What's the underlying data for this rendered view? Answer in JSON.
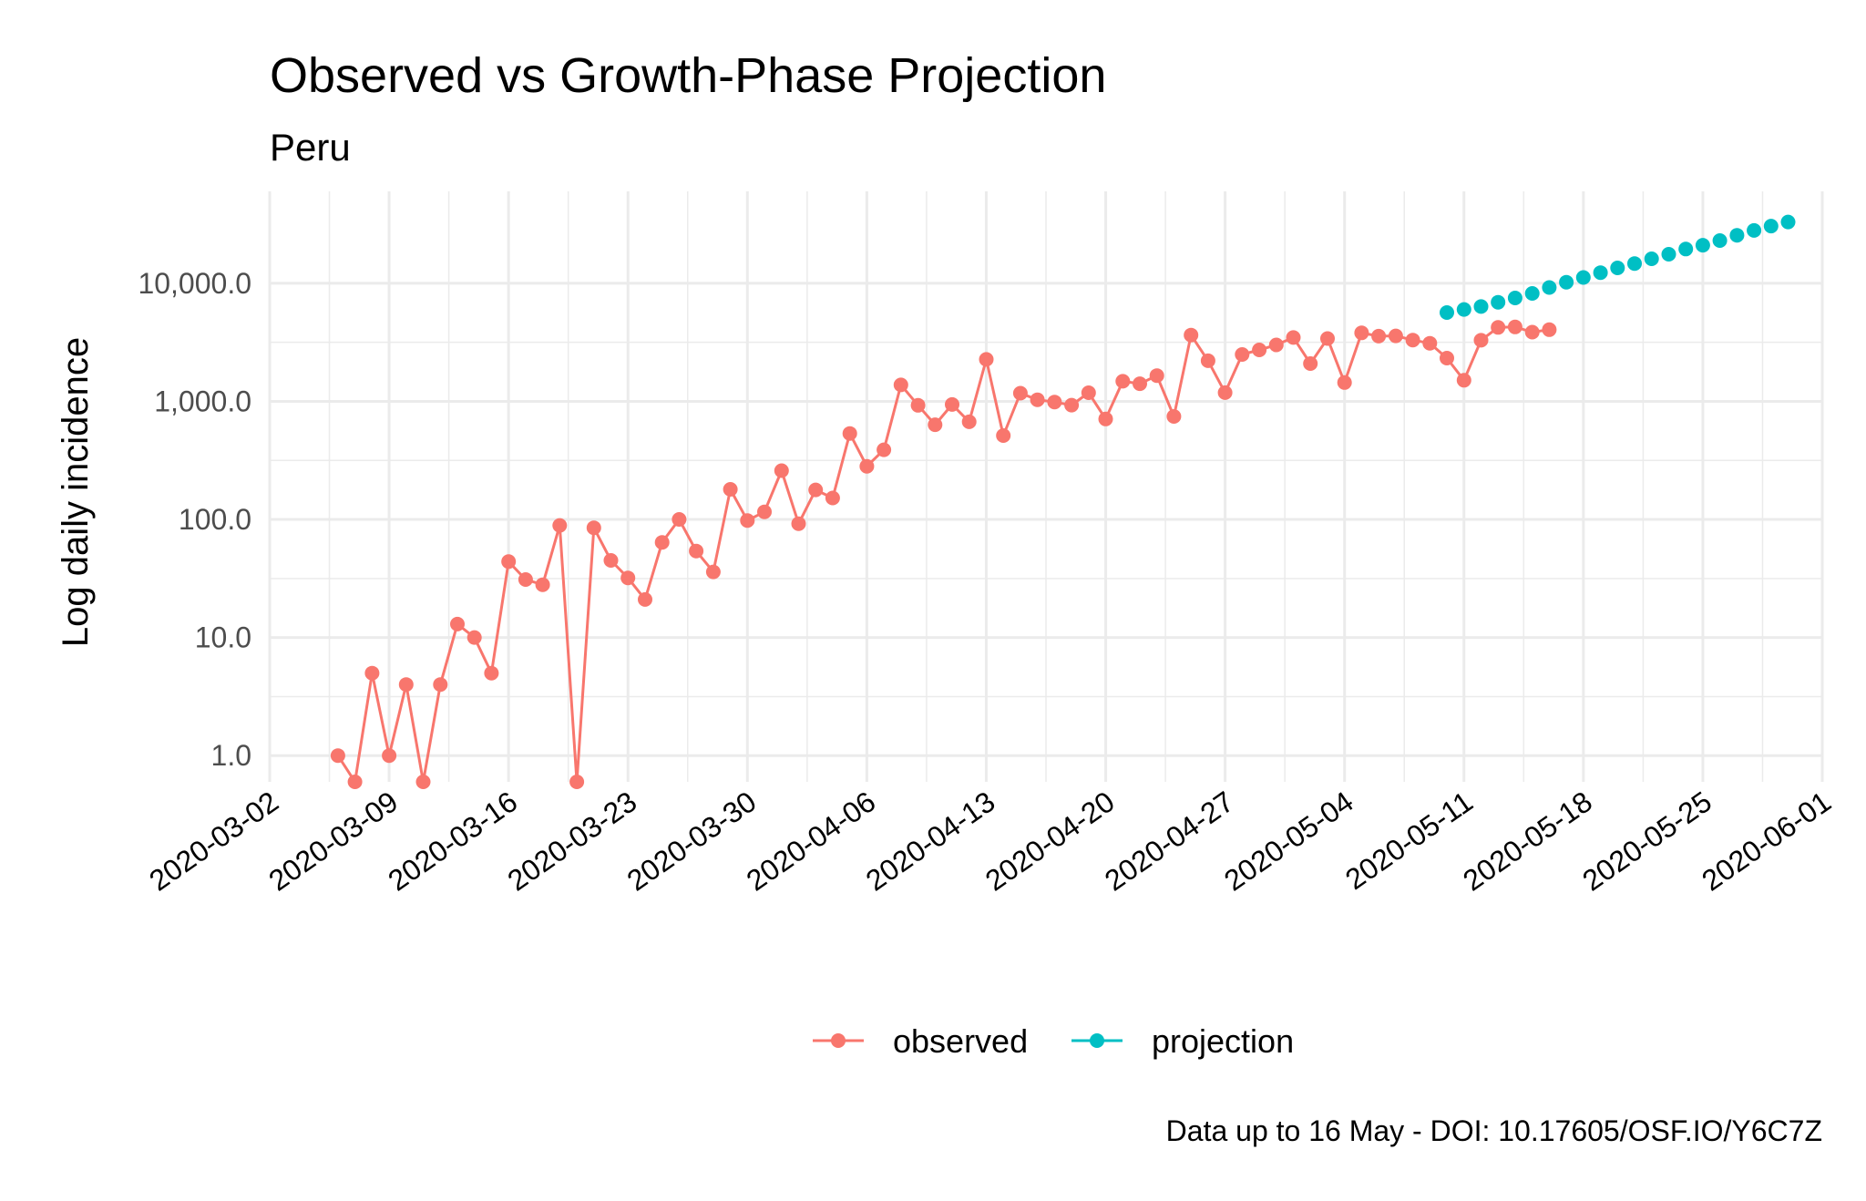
{
  "chart_data": {
    "type": "line",
    "title": "Observed vs Growth-Phase Projection",
    "subtitle": "Peru",
    "ylabel": "Log daily incidence",
    "xlabel": "",
    "yscale": "log10",
    "ylim": [
      0.6,
      60000
    ],
    "xlim": [
      "2020-03-02",
      "2020-06-01"
    ],
    "y_ticks": [
      1,
      10,
      100,
      1000,
      10000
    ],
    "y_tick_labels": [
      "1.0",
      "10.0",
      "100.0",
      "1,000.0",
      "10,000.0"
    ],
    "x_tick_labels": [
      "2020-03-02",
      "2020-03-09",
      "2020-03-16",
      "2020-03-23",
      "2020-03-30",
      "2020-04-06",
      "2020-04-13",
      "2020-04-20",
      "2020-04-27",
      "2020-05-04",
      "2020-05-11",
      "2020-05-18",
      "2020-05-25",
      "2020-06-01"
    ],
    "legend_position": "bottom",
    "caption": "Data up to 16 May - DOI: 10.17605/OSF.IO/Y6C7Z",
    "series": [
      {
        "name": "observed",
        "color": "#F8766D",
        "start_date": "2020-03-06",
        "values": [
          1,
          0.6,
          5,
          1,
          4,
          0.6,
          4,
          13,
          10,
          5,
          44,
          31,
          28,
          89,
          0.6,
          85,
          45,
          32,
          21,
          64,
          100,
          54,
          36,
          180,
          98,
          116,
          259,
          92,
          178,
          152,
          535,
          282,
          389,
          1379,
          925,
          634,
          940,
          671,
          2265,
          513,
          1172,
          1031,
          987,
          929,
          1182,
          709,
          1479,
          1411,
          1651,
          745,
          3645,
          2206,
          1184,
          2493,
          2725,
          3005,
          3471,
          2090,
          3403,
          1444,
          3798,
          3565,
          3587,
          3303,
          3106,
          2323,
          1508,
          3290,
          4228,
          4267,
          3855,
          4042
        ]
      },
      {
        "name": "projection",
        "color": "#00BFC4",
        "start_date": "2020-05-10",
        "values": [
          5650,
          6000,
          6350,
          6900,
          7500,
          8200,
          9200,
          10200,
          11200,
          12300,
          13500,
          14700,
          16100,
          17600,
          19500,
          21000,
          23000,
          25500,
          28000,
          30500,
          33000
        ]
      }
    ]
  }
}
